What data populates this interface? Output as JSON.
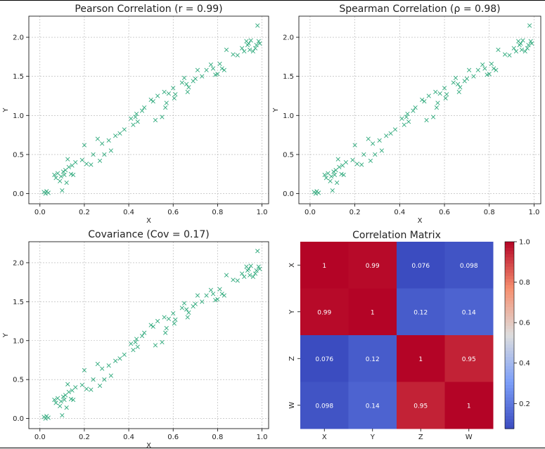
{
  "points": {
    "x": [
      0.018,
      0.025,
      0.03,
      0.038,
      0.065,
      0.072,
      0.08,
      0.09,
      0.095,
      0.1,
      0.105,
      0.11,
      0.115,
      0.12,
      0.125,
      0.13,
      0.14,
      0.145,
      0.15,
      0.16,
      0.19,
      0.2,
      0.21,
      0.23,
      0.24,
      0.26,
      0.27,
      0.28,
      0.29,
      0.31,
      0.32,
      0.34,
      0.36,
      0.38,
      0.41,
      0.42,
      0.43,
      0.435,
      0.44,
      0.46,
      0.47,
      0.5,
      0.51,
      0.52,
      0.53,
      0.55,
      0.56,
      0.565,
      0.57,
      0.58,
      0.6,
      0.605,
      0.61,
      0.64,
      0.65,
      0.66,
      0.665,
      0.67,
      0.69,
      0.7,
      0.71,
      0.73,
      0.75,
      0.77,
      0.78,
      0.79,
      0.8,
      0.81,
      0.82,
      0.83,
      0.84,
      0.87,
      0.89,
      0.91,
      0.92,
      0.93,
      0.935,
      0.94,
      0.945,
      0.95,
      0.96,
      0.97,
      0.975,
      0.98,
      0.985,
      0.99
    ],
    "y": [
      0.02,
      0.0,
      0.03,
      0.01,
      0.24,
      0.2,
      0.26,
      0.16,
      0.22,
      0.04,
      0.28,
      0.24,
      0.3,
      0.14,
      0.44,
      0.34,
      0.25,
      0.36,
      0.24,
      0.4,
      0.43,
      0.62,
      0.38,
      0.37,
      0.5,
      0.7,
      0.42,
      0.64,
      0.5,
      0.68,
      0.55,
      0.74,
      0.77,
      0.82,
      0.96,
      0.88,
      0.98,
      1.02,
      0.92,
      1.06,
      1.1,
      1.2,
      1.18,
      0.94,
      1.25,
      0.98,
      1.3,
      1.1,
      1.16,
      1.28,
      1.35,
      1.22,
      1.27,
      1.42,
      1.48,
      1.4,
      1.3,
      1.36,
      1.44,
      1.47,
      1.58,
      1.5,
      1.58,
      1.65,
      1.6,
      1.52,
      1.53,
      1.66,
      1.6,
      1.58,
      1.84,
      1.78,
      1.77,
      1.86,
      1.82,
      1.95,
      1.9,
      1.92,
      1.84,
      1.96,
      1.82,
      1.86,
      1.9,
      2.15,
      1.95,
      1.92
    ]
  },
  "chart_data": [
    {
      "type": "scatter",
      "title": "Pearson Correlation (r = 0.99)",
      "xlabel": "X",
      "ylabel": "Y",
      "xlim": [
        -0.05,
        1.03
      ],
      "ylim": [
        -0.13,
        2.27
      ],
      "xticks": [
        "0.0",
        "0.2",
        "0.4",
        "0.6",
        "0.8",
        "1.0"
      ],
      "yticks": [
        "0.0",
        "0.5",
        "1.0",
        "1.5",
        "2.0"
      ],
      "grid": true,
      "marker": "x",
      "color": "#2ca87a"
    },
    {
      "type": "scatter",
      "title": "Spearman Correlation (ρ = 0.98)",
      "xlabel": "X",
      "ylabel": "Y",
      "xlim": [
        -0.05,
        1.03
      ],
      "ylim": [
        -0.13,
        2.27
      ],
      "xticks": [
        "0.0",
        "0.2",
        "0.4",
        "0.6",
        "0.8",
        "1.0"
      ],
      "yticks": [
        "0.0",
        "0.5",
        "1.0",
        "1.5",
        "2.0"
      ],
      "grid": true,
      "marker": "x",
      "color": "#2ca87a"
    },
    {
      "type": "scatter",
      "title": "Covariance (Cov = 0.17)",
      "xlabel": "X",
      "ylabel": "Y",
      "xlim": [
        -0.05,
        1.03
      ],
      "ylim": [
        -0.13,
        2.27
      ],
      "xticks": [
        "0.0",
        "0.2",
        "0.4",
        "0.6",
        "0.8",
        "1.0"
      ],
      "yticks": [
        "0.0",
        "0.5",
        "1.0",
        "1.5",
        "2.0"
      ],
      "grid": true,
      "marker": "x",
      "color": "#2ca87a"
    },
    {
      "type": "heatmap",
      "title": "Correlation Matrix",
      "rows": [
        "X",
        "Y",
        "Z",
        "W"
      ],
      "cols": [
        "X",
        "Y",
        "Z",
        "W"
      ],
      "values": [
        [
          1,
          0.99,
          0.076,
          0.098
        ],
        [
          0.99,
          1,
          0.12,
          0.14
        ],
        [
          0.076,
          0.12,
          1,
          0.95
        ],
        [
          0.098,
          0.14,
          0.95,
          1
        ]
      ],
      "labels": [
        [
          "1",
          "0.99",
          "0.076",
          "0.098"
        ],
        [
          "0.99",
          "1",
          "0.12",
          "0.14"
        ],
        [
          "0.076",
          "0.12",
          "1",
          "0.95"
        ],
        [
          "0.098",
          "0.14",
          "0.95",
          "1"
        ]
      ],
      "colormap": "coolwarm",
      "colorbar": {
        "range": [
          0.076,
          1.0
        ],
        "ticks": [
          "1.0",
          "0.8",
          "0.6",
          "0.4",
          "0.2"
        ],
        "tick_values": [
          1.0,
          0.8,
          0.6,
          0.4,
          0.2
        ]
      }
    }
  ]
}
